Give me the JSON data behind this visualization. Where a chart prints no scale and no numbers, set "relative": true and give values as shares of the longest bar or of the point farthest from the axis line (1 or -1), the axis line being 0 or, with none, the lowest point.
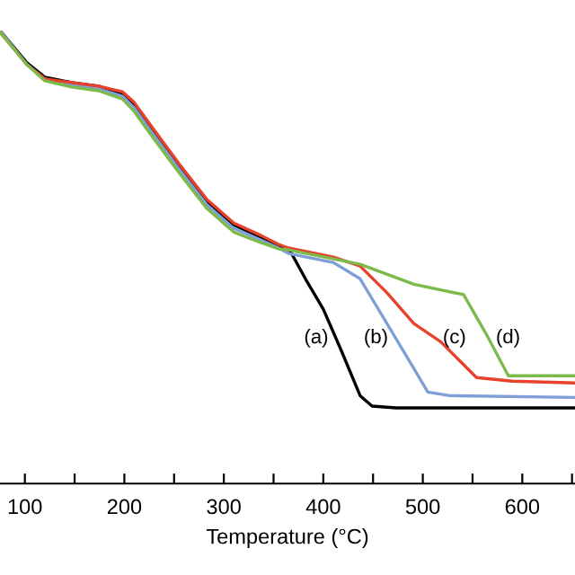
{
  "chart_data": {
    "type": "line",
    "relative": true,
    "xlabel": "Temperature (°C)",
    "xlim": [
      75,
      653
    ],
    "xticks": [
      100,
      {
        "value": 150,
        "label": null
      },
      200,
      {
        "value": 250,
        "label": null
      },
      300,
      {
        "value": 350,
        "label": null
      },
      400,
      {
        "value": 450,
        "label": null
      },
      500,
      {
        "value": 550,
        "label": null
      },
      600,
      {
        "value": 650,
        "label": null
      }
    ],
    "grid": false,
    "marker": "none",
    "line_style": "solid",
    "tick_labels": "x",
    "series": [
      {
        "name": "(a)",
        "color": "#000000",
        "x": [
          75,
          102,
          120,
          147,
          174,
          198,
          210,
          228,
          255,
          283,
          310,
          337,
          355,
          367,
          382,
          400,
          418,
          437,
          449,
          473,
          653
        ],
        "values": [
          1.0,
          0.929,
          0.897,
          0.885,
          0.877,
          0.861,
          0.837,
          0.782,
          0.702,
          0.623,
          0.571,
          0.544,
          0.524,
          0.512,
          0.452,
          0.385,
          0.294,
          0.194,
          0.171,
          0.167,
          0.167
        ]
      },
      {
        "name": "(b)",
        "color": "#7f9fd8",
        "x": [
          75,
          102,
          120,
          147,
          174,
          198,
          210,
          228,
          255,
          283,
          310,
          337,
          355,
          365,
          410,
          437,
          464,
          491,
          505,
          527,
          653
        ],
        "values": [
          1.0,
          0.925,
          0.893,
          0.879,
          0.871,
          0.855,
          0.829,
          0.774,
          0.694,
          0.615,
          0.563,
          0.538,
          0.52,
          0.508,
          0.488,
          0.452,
          0.353,
          0.254,
          0.202,
          0.194,
          0.19
        ]
      },
      {
        "name": "(c)",
        "color": "#e8412c",
        "x": [
          75,
          102,
          120,
          147,
          174,
          198,
          210,
          228,
          255,
          283,
          310,
          337,
          355,
          365,
          410,
          437,
          464,
          491,
          518,
          554,
          590,
          653
        ],
        "values": [
          0.996,
          0.925,
          0.893,
          0.885,
          0.877,
          0.865,
          0.841,
          0.786,
          0.706,
          0.627,
          0.575,
          0.548,
          0.528,
          0.52,
          0.5,
          0.48,
          0.421,
          0.353,
          0.313,
          0.234,
          0.226,
          0.222
        ]
      },
      {
        "name": "(d)",
        "color": "#7cba4a",
        "x": [
          75,
          102,
          120,
          147,
          174,
          198,
          210,
          228,
          255,
          283,
          310,
          337,
          355,
          365,
          437,
          491,
          541,
          563,
          586,
          653
        ],
        "values": [
          0.996,
          0.925,
          0.889,
          0.875,
          0.867,
          0.849,
          0.821,
          0.766,
          0.686,
          0.607,
          0.555,
          0.532,
          0.518,
          0.516,
          0.484,
          0.44,
          0.417,
          0.333,
          0.238,
          0.238
        ]
      }
    ]
  }
}
